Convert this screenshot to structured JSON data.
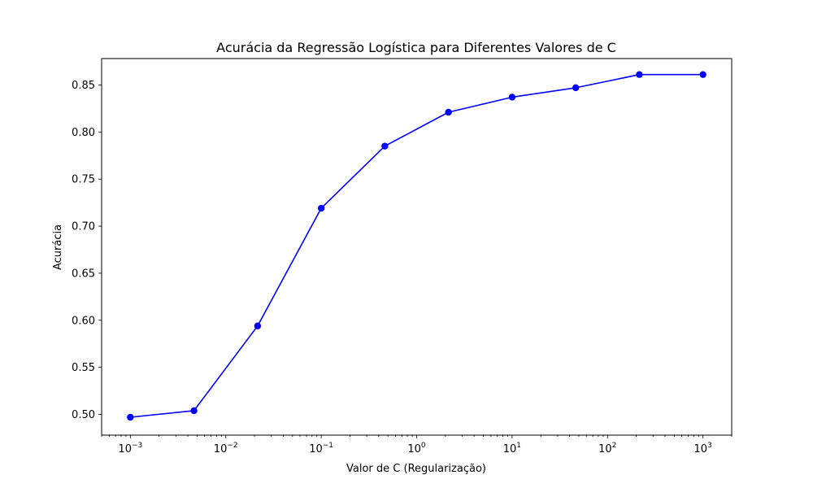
{
  "chart_data": {
    "type": "line",
    "title": "Acurácia da Regressão Logística para Diferentes Valores de C",
    "xlabel": "Valor de C (Regularização)",
    "ylabel": "Acurácia",
    "x_scale": "log",
    "xlim": [
      0.0005,
      2000
    ],
    "ylim": [
      0.478,
      0.878
    ],
    "x_ticks": [
      {
        "value": 0.001,
        "base": "10",
        "exp": "−3"
      },
      {
        "value": 0.01,
        "base": "10",
        "exp": "−2"
      },
      {
        "value": 0.1,
        "base": "10",
        "exp": "−1"
      },
      {
        "value": 1,
        "base": "10",
        "exp": "0"
      },
      {
        "value": 10,
        "base": "10",
        "exp": "1"
      },
      {
        "value": 100,
        "base": "10",
        "exp": "2"
      },
      {
        "value": 1000,
        "base": "10",
        "exp": "3"
      }
    ],
    "y_ticks": [
      {
        "value": 0.5,
        "label": "0.50"
      },
      {
        "value": 0.55,
        "label": "0.55"
      },
      {
        "value": 0.6,
        "label": "0.60"
      },
      {
        "value": 0.65,
        "label": "0.65"
      },
      {
        "value": 0.7,
        "label": "0.70"
      },
      {
        "value": 0.75,
        "label": "0.75"
      },
      {
        "value": 0.8,
        "label": "0.80"
      },
      {
        "value": 0.85,
        "label": "0.85"
      }
    ],
    "grid": false,
    "series": [
      {
        "color": "#0000ff",
        "marker": "circle",
        "x": [
          0.001,
          0.004642,
          0.021544,
          0.1,
          0.464159,
          2.154435,
          10,
          46.415888,
          215.443469,
          1000
        ],
        "y": [
          0.497,
          0.504,
          0.594,
          0.719,
          0.785,
          0.821,
          0.837,
          0.847,
          0.861,
          0.861
        ]
      }
    ]
  }
}
